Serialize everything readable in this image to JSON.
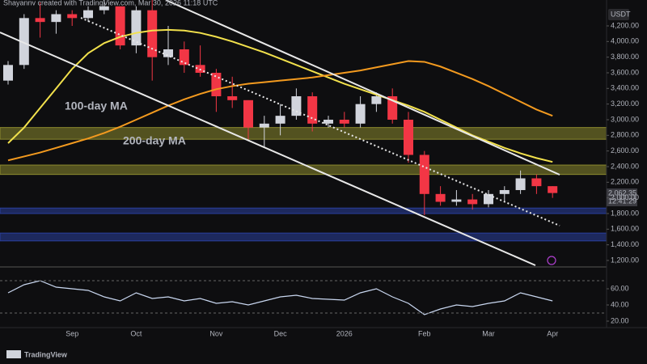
{
  "chart_data": {
    "type": "candlestick",
    "header": "Shayannv created with TradingView.com, Mar 30, 2026 11:18 UTC",
    "currency": "USDT",
    "brand": "TradingView",
    "last_price_label": "2,062.35",
    "countdown": "12:41:29",
    "annotations": [
      {
        "text": "100-day MA",
        "color": "#f2e14c"
      },
      {
        "text": "200-day MA",
        "color": "#f39a1f"
      }
    ],
    "categories": [
      null,
      null,
      null,
      null,
      "Sep",
      null,
      null,
      null,
      "Oct",
      null,
      null,
      null,
      null,
      "Nov",
      null,
      null,
      null,
      "Dec",
      null,
      null,
      null,
      "2026",
      null,
      null,
      null,
      null,
      "Feb",
      null,
      null,
      null,
      "Mar",
      null,
      null,
      null,
      "Apr"
    ],
    "open": [
      3500,
      3700,
      4300,
      4250,
      4350,
      4300,
      4400,
      4450,
      3950,
      4400,
      3800,
      3900,
      3700,
      3600,
      3300,
      3250,
      2900,
      2950,
      3050,
      3300,
      2950,
      3000,
      2950,
      3200,
      3300,
      3000,
      2550,
      2050,
      1950,
      1980,
      1920,
      2050,
      2100,
      2250,
      2150
    ],
    "high": [
      3750,
      4350,
      4500,
      4400,
      4400,
      4450,
      4550,
      4450,
      4450,
      4550,
      4200,
      4000,
      3950,
      3650,
      3550,
      3250,
      3050,
      3200,
      3400,
      3350,
      3050,
      3100,
      3300,
      3350,
      3400,
      3100,
      2600,
      2150,
      2100,
      2050,
      2100,
      2150,
      2350,
      2300,
      2150
    ],
    "low": [
      3450,
      3650,
      4050,
      4100,
      4200,
      4250,
      4350,
      3900,
      3850,
      3500,
      3700,
      3600,
      3550,
      3100,
      3150,
      2750,
      2650,
      2800,
      3000,
      2850,
      2900,
      2900,
      2900,
      3100,
      2950,
      2450,
      1780,
      1900,
      1900,
      1850,
      1880,
      1950,
      2050,
      2050,
      2000
    ],
    "close": [
      3700,
      4300,
      4250,
      4350,
      4300,
      4400,
      4450,
      3950,
      4400,
      3800,
      3900,
      3700,
      3600,
      3300,
      3250,
      2900,
      2950,
      3050,
      3300,
      2950,
      3000,
      2950,
      3200,
      3300,
      3000,
      2550,
      2050,
      1950,
      1980,
      1920,
      2050,
      2100,
      2250,
      2150,
      2062.35
    ],
    "up_color": "#d1d4dc",
    "down_color": "#f23645",
    "series": [
      {
        "name": "100-day MA",
        "color": "#f2e14c",
        "values": [
          2700,
          2900,
          3150,
          3400,
          3650,
          3850,
          3980,
          4060,
          4110,
          4140,
          4150,
          4140,
          4110,
          4060,
          4000,
          3930,
          3860,
          3780,
          3700,
          3620,
          3540,
          3460,
          3390,
          3320,
          3250,
          3180,
          3100,
          3000,
          2900,
          2800,
          2720,
          2640,
          2570,
          2510,
          2460
        ]
      },
      {
        "name": "200-day MA",
        "color": "#f39a1f",
        "values": [
          2480,
          2530,
          2580,
          2640,
          2700,
          2760,
          2830,
          2910,
          3000,
          3090,
          3180,
          3260,
          3330,
          3390,
          3430,
          3460,
          3480,
          3500,
          3520,
          3540,
          3570,
          3600,
          3630,
          3670,
          3710,
          3750,
          3740,
          3680,
          3600,
          3520,
          3430,
          3330,
          3230,
          3130,
          3050
        ]
      }
    ],
    "zones": [
      {
        "low": 2750,
        "high": 2900,
        "color": "#8c8a2e"
      },
      {
        "low": 2300,
        "high": 2420,
        "color": "#8c8a2e"
      },
      {
        "low": 1800,
        "high": 1870,
        "color": "#2a3f9e"
      },
      {
        "low": 1450,
        "high": 1550,
        "color": "#2a3f9e"
      }
    ],
    "ylim": [
      1117,
      4531
    ],
    "yticks": [
      {
        "value": 1200,
        "label": "1,200.00"
      },
      {
        "value": 1400,
        "label": "1,400.00"
      },
      {
        "value": 1600,
        "label": "1,600.00"
      },
      {
        "value": 1800,
        "label": "1,800.00"
      },
      {
        "value": 2000,
        "label": "2,000.00"
      },
      {
        "value": 2200,
        "label": "2,200.00"
      },
      {
        "value": 2400,
        "label": "2,400.00"
      },
      {
        "value": 2600,
        "label": "2,600.00"
      },
      {
        "value": 2800,
        "label": "2,800.00"
      },
      {
        "value": 3000,
        "label": "3,000.00"
      },
      {
        "value": 3200,
        "label": "3,200.00"
      },
      {
        "value": 3400,
        "label": "3,400.00"
      },
      {
        "value": 3600,
        "label": "3,600.00"
      },
      {
        "value": 3800,
        "label": "3,800.00"
      },
      {
        "value": 4000,
        "label": "4,000.00"
      },
      {
        "value": 4200,
        "label": "4,200.00"
      }
    ],
    "rsi": {
      "color": "#c9d7f0",
      "values": [
        55,
        65,
        70,
        62,
        60,
        58,
        50,
        45,
        55,
        48,
        50,
        45,
        48,
        42,
        44,
        40,
        45,
        50,
        52,
        48,
        47,
        46,
        55,
        60,
        50,
        42,
        28,
        35,
        40,
        38,
        42,
        45,
        55,
        50,
        45
      ],
      "ylim": [
        12,
        84
      ],
      "yticks": [
        {
          "value": 60,
          "label": "60.00"
        },
        {
          "value": 40,
          "label": "40.00"
        },
        {
          "value": 20,
          "label": "20.00"
        }
      ]
    }
  }
}
